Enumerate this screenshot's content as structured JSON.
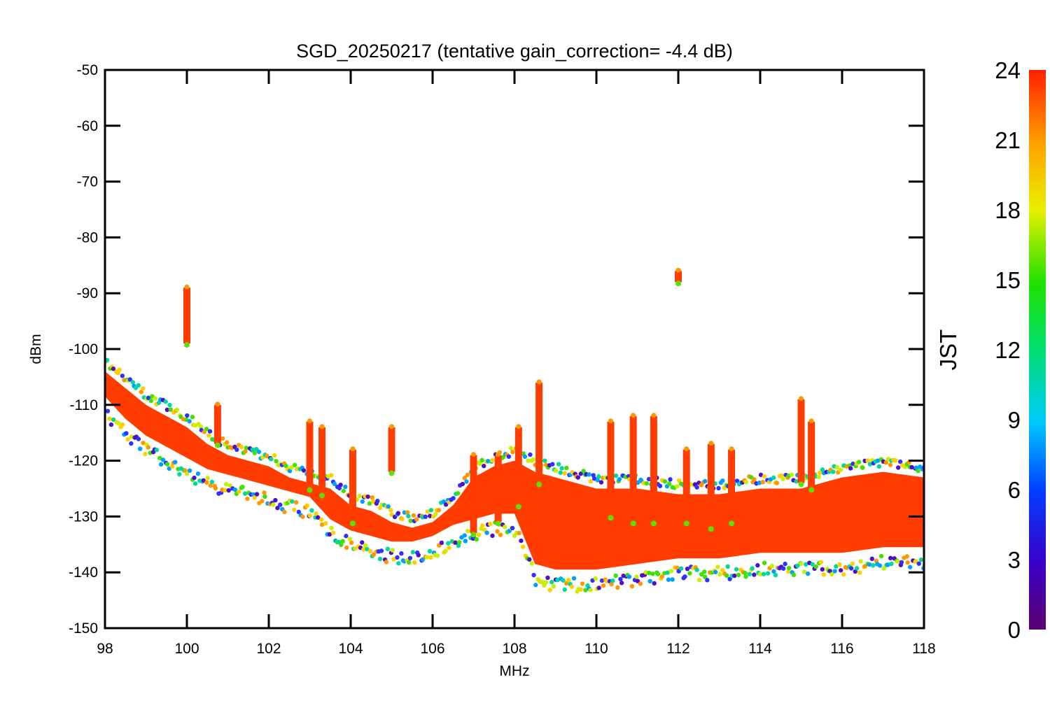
{
  "chart_data": {
    "type": "scatter",
    "title": "SGD_20250217 (tentative gain_correction= -4.4 dB)",
    "xlabel": "MHz",
    "ylabel": "dBm",
    "xlim": [
      98,
      118
    ],
    "ylim": [
      -150,
      -50
    ],
    "xticks": [
      "98",
      "100",
      "102",
      "104",
      "106",
      "108",
      "110",
      "112",
      "114",
      "116",
      "118"
    ],
    "yticks": [
      "-50",
      "-60",
      "-70",
      "-80",
      "-90",
      "-100",
      "-110",
      "-120",
      "-130",
      "-140",
      "-150"
    ],
    "colorbar": {
      "label": "JST",
      "range": [
        0,
        24
      ],
      "ticks": [
        "0",
        "3",
        "6",
        "9",
        "12",
        "15",
        "18",
        "21",
        "24"
      ],
      "colormap": "rainbow"
    },
    "baseline": {
      "x": [
        98,
        98.5,
        99,
        99.5,
        100,
        100.5,
        101,
        101.5,
        102,
        102.5,
        103,
        103.5,
        104,
        104.5,
        105,
        105.5,
        106,
        106.5,
        107,
        107.5,
        108,
        108.5,
        109,
        109.5,
        110,
        111,
        112,
        113,
        114,
        115,
        116,
        117,
        118
      ],
      "upper": [
        -103,
        -106,
        -109,
        -111,
        -113,
        -116,
        -118,
        -119,
        -120,
        -122,
        -123,
        -124,
        -127,
        -128,
        -130,
        -131,
        -130,
        -127,
        -122,
        -120,
        -119,
        -121,
        -122,
        -123,
        -124,
        -124,
        -125,
        -125,
        -124,
        -124,
        -122,
        -121,
        -122
      ],
      "lower": [
        -110,
        -114,
        -117,
        -119,
        -121,
        -123,
        -124,
        -125,
        -126,
        -127,
        -128,
        -132,
        -134,
        -135,
        -136,
        -136,
        -135,
        -133,
        -132,
        -131,
        -131,
        -140,
        -141,
        -141,
        -141,
        -140,
        -139,
        -139,
        -138,
        -138,
        -138,
        -137,
        -137
      ]
    },
    "spikes": [
      {
        "x": 100.0,
        "top": -89,
        "bottom": -99
      },
      {
        "x": 100.75,
        "top": -110,
        "bottom": -117
      },
      {
        "x": 103.0,
        "top": -113,
        "bottom": -125
      },
      {
        "x": 103.3,
        "top": -114,
        "bottom": -126
      },
      {
        "x": 104.05,
        "top": -118,
        "bottom": -131
      },
      {
        "x": 105.0,
        "top": -114,
        "bottom": -122
      },
      {
        "x": 107.0,
        "top": -119,
        "bottom": -133
      },
      {
        "x": 107.6,
        "top": -119,
        "bottom": -131
      },
      {
        "x": 108.1,
        "top": -114,
        "bottom": -128
      },
      {
        "x": 108.6,
        "top": -106,
        "bottom": -124
      },
      {
        "x": 110.35,
        "top": -113,
        "bottom": -130
      },
      {
        "x": 110.9,
        "top": -112,
        "bottom": -131
      },
      {
        "x": 111.4,
        "top": -112,
        "bottom": -131
      },
      {
        "x": 112.0,
        "top": -86,
        "bottom": -88
      },
      {
        "x": 112.2,
        "top": -118,
        "bottom": -131
      },
      {
        "x": 112.8,
        "top": -117,
        "bottom": -132
      },
      {
        "x": 113.3,
        "top": -118,
        "bottom": -131
      },
      {
        "x": 115.0,
        "top": -109,
        "bottom": -124
      },
      {
        "x": 115.25,
        "top": -113,
        "bottom": -125
      }
    ]
  }
}
